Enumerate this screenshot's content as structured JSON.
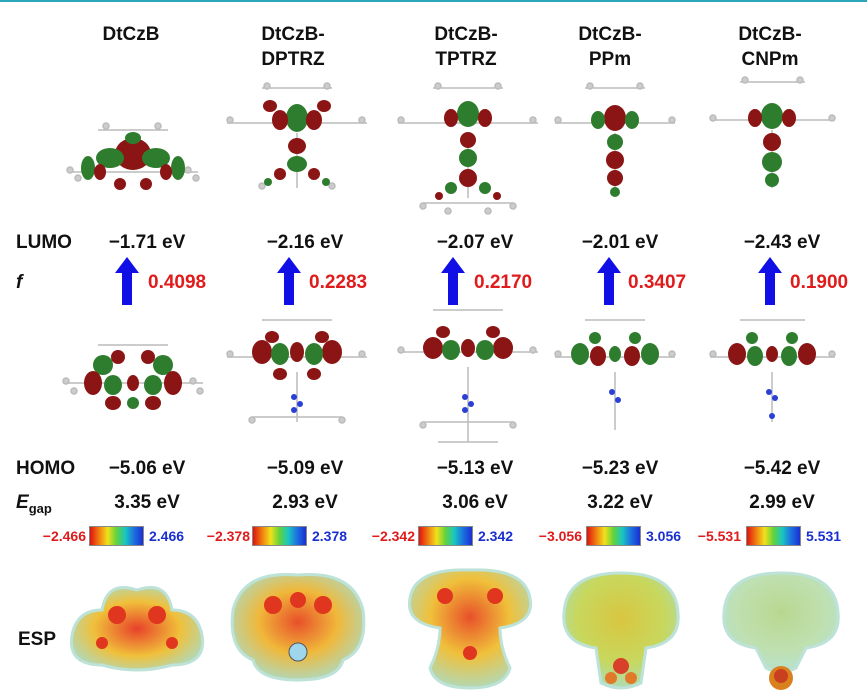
{
  "columns": [
    {
      "title_line1": "DtCzB",
      "title_line2": "",
      "lumo": "−1.71 eV",
      "f": "0.4098",
      "homo": "−5.06 eV",
      "egap": "3.35 eV",
      "esp_min": "−2.466",
      "esp_max": "2.466"
    },
    {
      "title_line1": "DtCzB-",
      "title_line2": "DPTRZ",
      "lumo": "−2.16 eV",
      "f": "0.2283",
      "homo": "−5.09 eV",
      "egap": "2.93 eV",
      "esp_min": "−2.378",
      "esp_max": "2.378"
    },
    {
      "title_line1": "DtCzB-",
      "title_line2": "TPTRZ",
      "lumo": "−2.07 eV",
      "f": "0.2170",
      "homo": "−5.13 eV",
      "egap": "3.06 eV",
      "esp_min": "−2.342",
      "esp_max": "2.342"
    },
    {
      "title_line1": "DtCzB-",
      "title_line2": "PPm",
      "lumo": "−2.01 eV",
      "f": "0.3407",
      "homo": "−5.23 eV",
      "egap": "3.22 eV",
      "esp_min": "−3.056",
      "esp_max": "3.056"
    },
    {
      "title_line1": "DtCzB-",
      "title_line2": "CNPm",
      "lumo": "−2.43 eV",
      "f": "0.1900",
      "homo": "−5.42 eV",
      "egap": "2.99 eV",
      "esp_min": "−5.531",
      "esp_max": "5.531"
    }
  ],
  "row_labels": {
    "lumo": "LUMO",
    "f": "f",
    "homo": "HOMO",
    "egap_main": "E",
    "egap_sub": "gap",
    "esp": "ESP"
  },
  "colors": {
    "arrow": "#1010e6",
    "f_value": "#e01b1b",
    "orbital_red": "#8b1414",
    "orbital_green": "#2e7d2e",
    "esp_min_label": "#e01b1b",
    "esp_max_label": "#1a2fd0"
  }
}
